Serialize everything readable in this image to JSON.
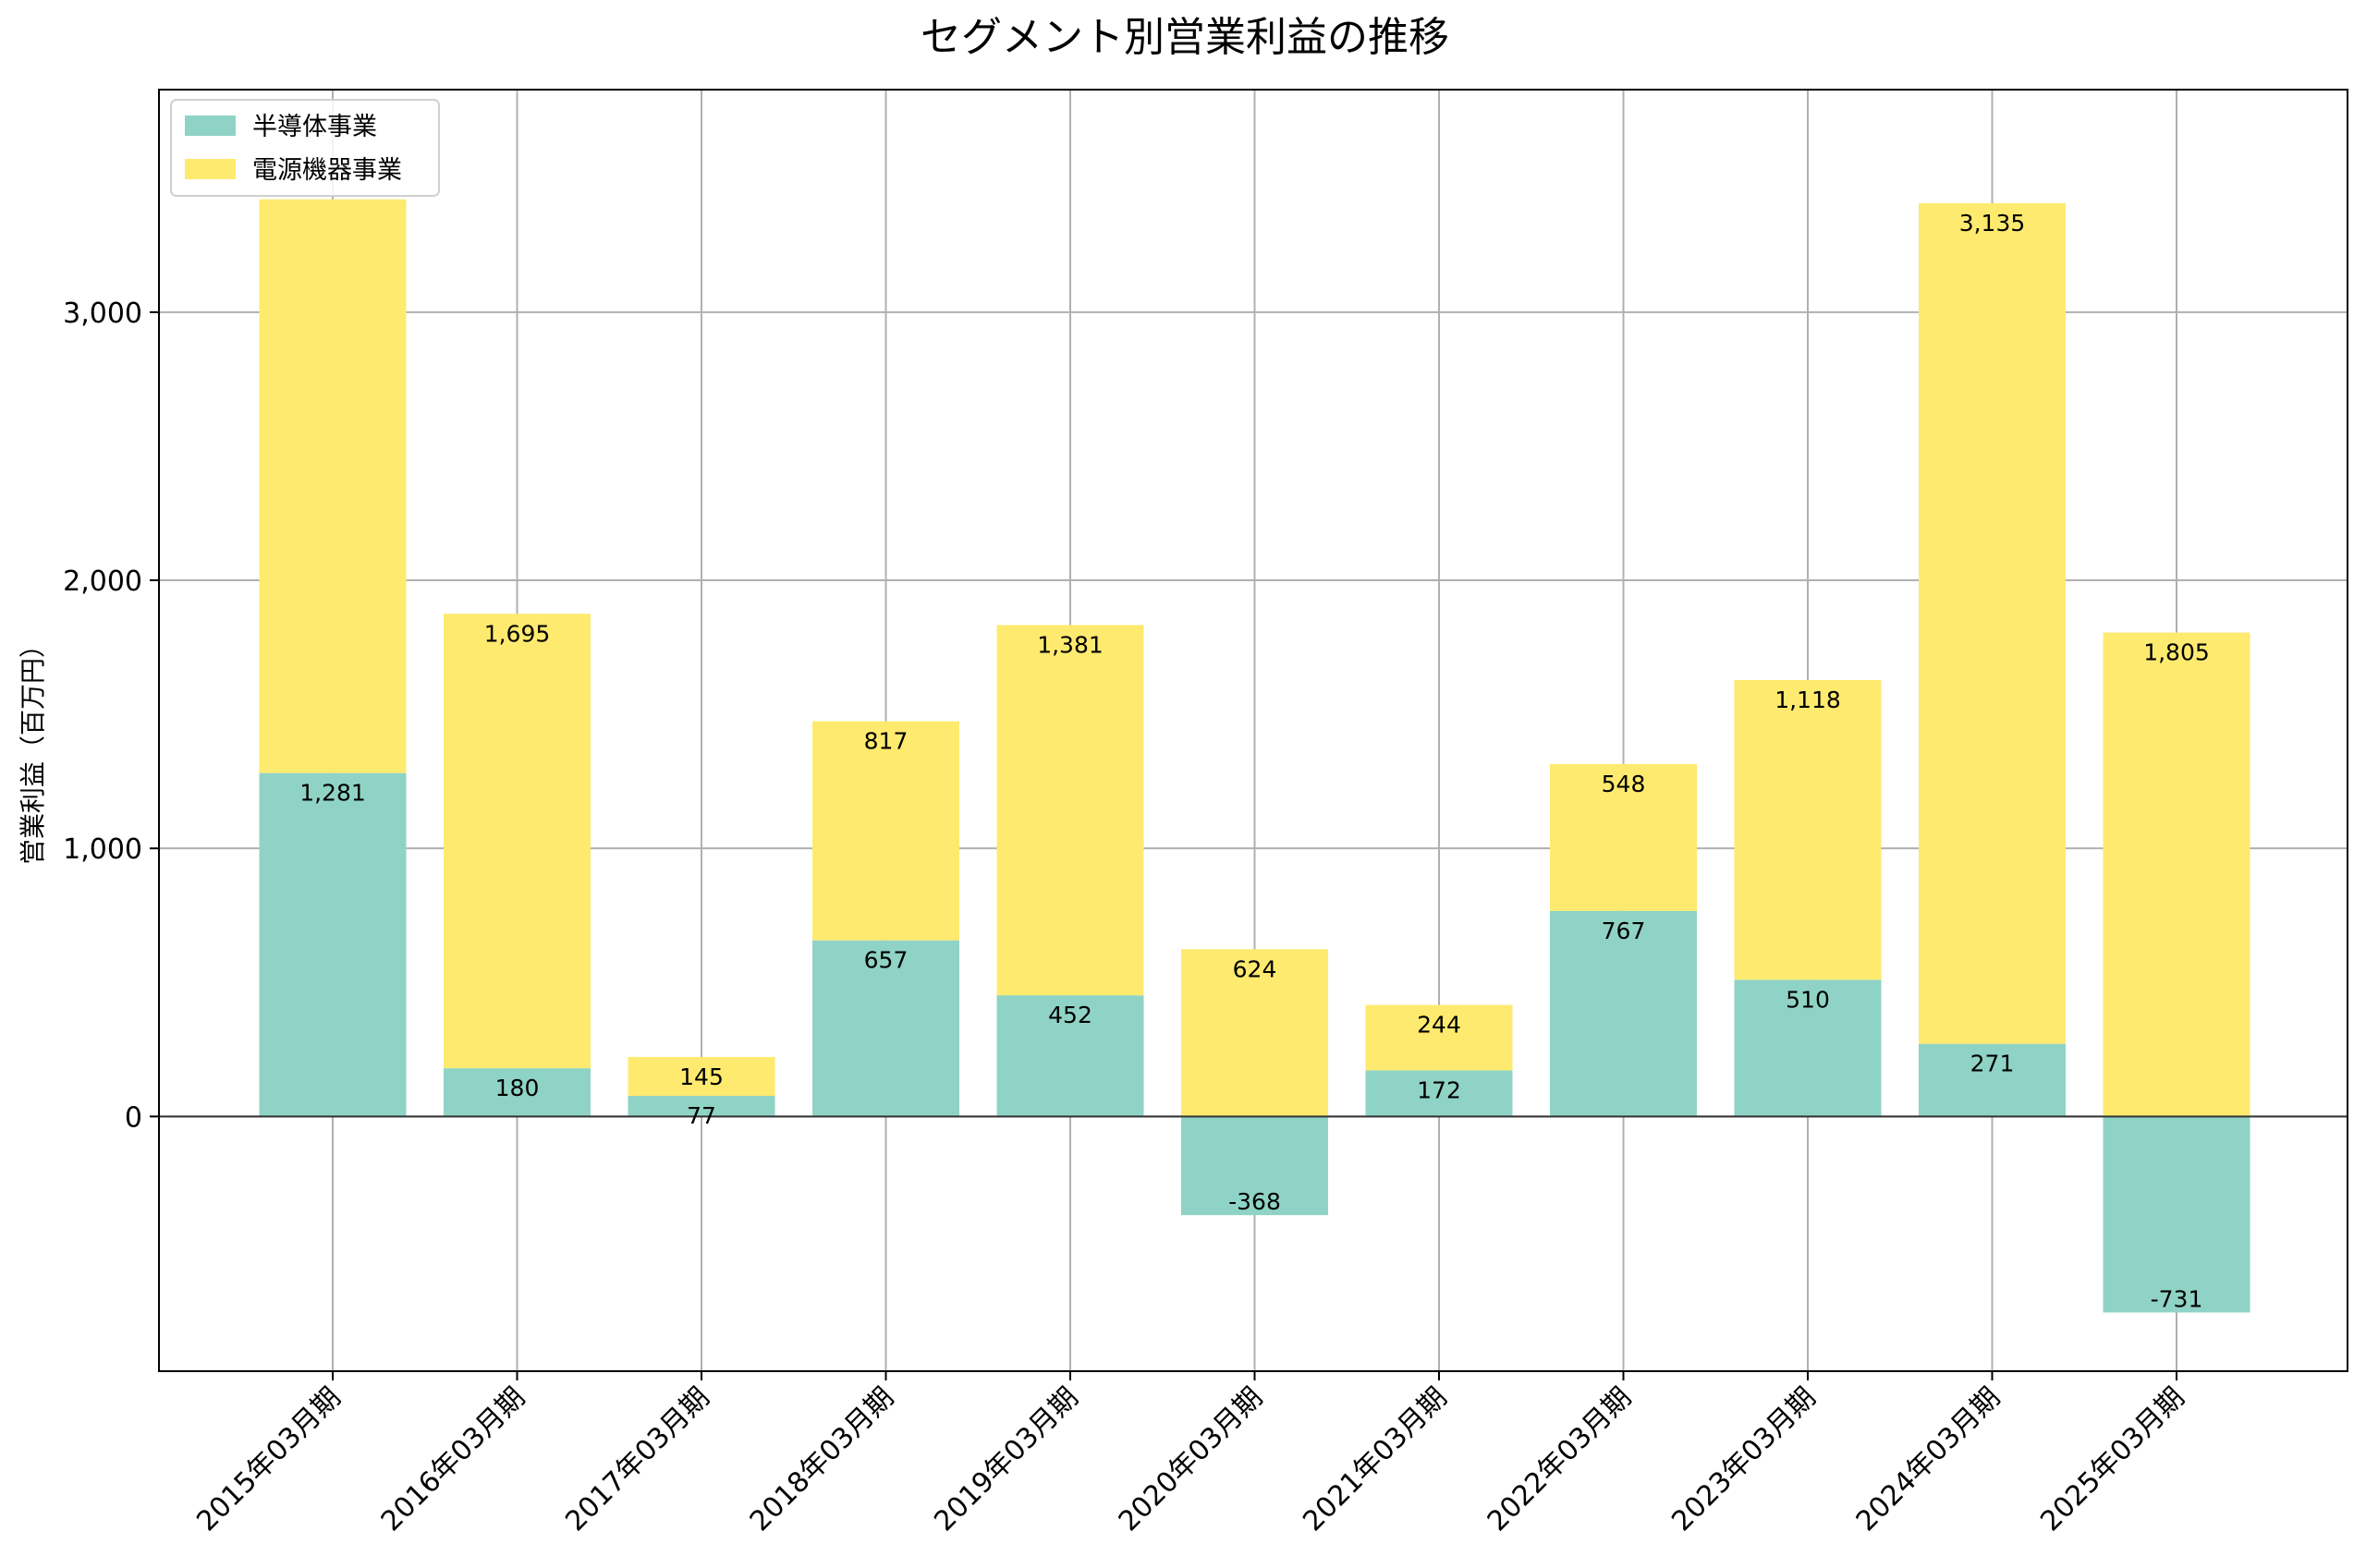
{
  "chart_data": {
    "type": "bar",
    "stacked": true,
    "title": "セグメント別営業利益の推移",
    "xlabel": "",
    "ylabel": "営業利益（百万円）",
    "categories": [
      "2015年03月期",
      "2016年03月期",
      "2017年03月期",
      "2018年03月期",
      "2019年03月期",
      "2020年03月期",
      "2021年03月期",
      "2022年03月期",
      "2023年03月期",
      "2024年03月期",
      "2025年03月期"
    ],
    "series": [
      {
        "name": "半導体事業",
        "color": "#8fd3c6",
        "values": [
          1281,
          180,
          77,
          657,
          452,
          -368,
          172,
          767,
          510,
          271,
          -731
        ],
        "labels": [
          "1,281",
          "180",
          "77",
          "657",
          "452",
          "-368",
          "172",
          "767",
          "510",
          "271",
          "-731"
        ]
      },
      {
        "name": "電源機器事業",
        "color": "#feea6f",
        "values": [
          2140,
          1695,
          145,
          817,
          1381,
          624,
          244,
          548,
          1118,
          3135,
          1805
        ],
        "labels": [
          "",
          "1,695",
          "145",
          "817",
          "1,381",
          "624",
          "244",
          "548",
          "1,118",
          "3,135",
          "1,805"
        ]
      }
    ],
    "yticks": [
      0,
      1000,
      2000,
      3000
    ],
    "ytick_labels": [
      "0",
      "1,000",
      "2,000",
      "3,000"
    ],
    "ylim": [
      -950,
      3830
    ],
    "grid": true,
    "legend": "top-left"
  }
}
